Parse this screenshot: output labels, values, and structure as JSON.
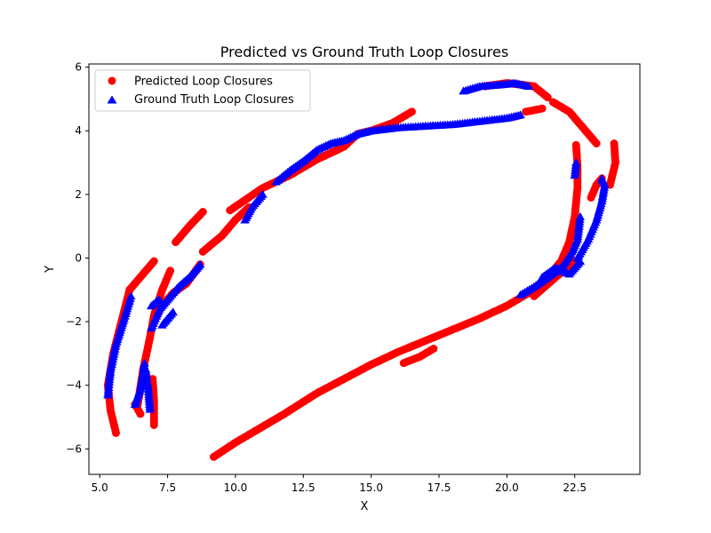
{
  "chart_data": {
    "type": "scatter",
    "title": "Predicted vs Ground Truth Loop Closures",
    "xlabel": "X",
    "ylabel": "Y",
    "xlim": [
      4.6,
      24.9
    ],
    "ylim": [
      -6.8,
      6.1
    ],
    "xticks": [
      5.0,
      7.5,
      10.0,
      12.5,
      15.0,
      17.5,
      20.0,
      22.5
    ],
    "xtick_labels": [
      "5.0",
      "7.5",
      "10.0",
      "12.5",
      "15.0",
      "17.5",
      "20.0",
      "22.5"
    ],
    "yticks": [
      -6,
      -4,
      -2,
      0,
      2,
      4,
      6
    ],
    "ytick_labels": [
      "−6",
      "−4",
      "−2",
      "0",
      "2",
      "4",
      "6"
    ],
    "grid": false,
    "legend_position": "upper-left",
    "legend": [
      {
        "label": "Predicted Loop Closures",
        "marker": "circle",
        "color": "#ff0000"
      },
      {
        "label": "Ground Truth Loop Closures",
        "marker": "triangle",
        "color": "#0000ff"
      }
    ],
    "series": [
      {
        "name": "Predicted Loop Closures",
        "marker": "circle",
        "color": "#ff0000",
        "segments": [
          [
            [
              9.2,
              -6.25
            ],
            [
              10.0,
              -5.8
            ],
            [
              11.0,
              -5.3
            ],
            [
              11.8,
              -4.9
            ],
            [
              13.0,
              -4.25
            ],
            [
              14.0,
              -3.8
            ],
            [
              15.0,
              -3.35
            ],
            [
              16.0,
              -2.95
            ],
            [
              17.0,
              -2.6
            ],
            [
              18.0,
              -2.25
            ],
            [
              19.0,
              -1.9
            ],
            [
              20.0,
              -1.5
            ],
            [
              21.0,
              -1.0
            ],
            [
              21.5,
              -0.6
            ],
            [
              22.0,
              -0.1
            ],
            [
              22.3,
              0.5
            ],
            [
              22.5,
              1.3
            ],
            [
              22.6,
              2.2
            ],
            [
              22.6,
              2.9
            ],
            [
              22.55,
              3.55
            ]
          ],
          [
            [
              16.2,
              -3.3
            ],
            [
              16.8,
              -3.1
            ],
            [
              17.3,
              -2.85
            ]
          ],
          [
            [
              21.0,
              -1.2
            ],
            [
              21.8,
              -0.6
            ],
            [
              22.5,
              -0.1
            ]
          ],
          [
            [
              23.1,
              1.9
            ],
            [
              23.3,
              2.3
            ],
            [
              23.5,
              2.5
            ]
          ],
          [
            [
              23.8,
              2.3
            ],
            [
              24.0,
              3.0
            ],
            [
              23.95,
              3.6
            ]
          ],
          [
            [
              20.7,
              4.6
            ],
            [
              21.3,
              4.7
            ]
          ],
          [
            [
              21.5,
              5.05
            ],
            [
              21.0,
              5.4
            ],
            [
              20.0,
              5.5
            ],
            [
              19.2,
              5.4
            ]
          ],
          [
            [
              21.7,
              4.9
            ],
            [
              22.3,
              4.6
            ],
            [
              22.8,
              4.1
            ],
            [
              23.3,
              3.6
            ]
          ],
          [
            [
              9.8,
              1.5
            ],
            [
              11.0,
              2.2
            ],
            [
              12.0,
              2.6
            ],
            [
              13.0,
              3.1
            ],
            [
              14.0,
              3.5
            ],
            [
              14.5,
              3.9
            ],
            [
              15.0,
              4.0
            ],
            [
              15.8,
              4.25
            ],
            [
              16.5,
              4.6
            ]
          ],
          [
            [
              8.8,
              0.2
            ],
            [
              9.5,
              0.7
            ],
            [
              10.0,
              1.2
            ],
            [
              10.5,
              1.6
            ]
          ],
          [
            [
              7.8,
              0.5
            ],
            [
              8.3,
              1.0
            ],
            [
              8.8,
              1.45
            ]
          ],
          [
            [
              6.1,
              -1.0
            ],
            [
              6.3,
              -0.8
            ],
            [
              6.6,
              -0.5
            ],
            [
              7.0,
              -0.1
            ]
          ],
          [
            [
              5.6,
              -5.5
            ],
            [
              5.4,
              -4.8
            ],
            [
              5.3,
              -4.0
            ],
            [
              5.5,
              -3.0
            ],
            [
              5.8,
              -2.0
            ],
            [
              6.1,
              -1.0
            ]
          ],
          [
            [
              6.4,
              -4.6
            ],
            [
              6.6,
              -3.5
            ],
            [
              6.85,
              -2.5
            ],
            [
              7.0,
              -1.8
            ],
            [
              7.3,
              -1.0
            ],
            [
              7.6,
              -0.4
            ]
          ],
          [
            [
              6.5,
              -4.9
            ],
            [
              6.3,
              -4.6
            ]
          ],
          [
            [
              6.95,
              -3.8
            ],
            [
              7.0,
              -4.5
            ],
            [
              7.0,
              -5.25
            ]
          ],
          [
            [
              7.0,
              -2.0
            ],
            [
              7.3,
              -1.5
            ],
            [
              7.7,
              -1.1
            ],
            [
              8.2,
              -0.8
            ],
            [
              8.7,
              -0.2
            ]
          ]
        ]
      },
      {
        "name": "Ground Truth Loop Closures",
        "marker": "triangle",
        "color": "#0000ff",
        "segments": [
          [
            [
              5.3,
              -4.3
            ],
            [
              5.4,
              -3.5
            ],
            [
              5.6,
              -2.7
            ],
            [
              5.9,
              -1.9
            ],
            [
              6.15,
              -1.2
            ]
          ],
          [
            [
              6.3,
              -4.6
            ],
            [
              6.5,
              -4.1
            ],
            [
              6.6,
              -3.6
            ],
            [
              6.65,
              -3.3
            ]
          ],
          [
            [
              6.7,
              -3.5
            ],
            [
              6.8,
              -4.2
            ],
            [
              6.85,
              -4.75
            ]
          ],
          [
            [
              6.9,
              -2.2
            ],
            [
              7.2,
              -1.6
            ],
            [
              7.6,
              -1.2
            ],
            [
              7.9,
              -0.9
            ],
            [
              8.3,
              -0.6
            ],
            [
              8.7,
              -0.2
            ]
          ],
          [
            [
              6.9,
              -1.5
            ],
            [
              7.2,
              -1.3
            ]
          ],
          [
            [
              7.3,
              -2.1
            ],
            [
              7.7,
              -1.7
            ]
          ],
          [
            [
              10.35,
              1.2
            ],
            [
              10.6,
              1.6
            ],
            [
              11.0,
              2.0
            ]
          ],
          [
            [
              11.5,
              2.4
            ],
            [
              12.0,
              2.75
            ],
            [
              12.5,
              3.05
            ],
            [
              13.0,
              3.4
            ],
            [
              13.5,
              3.6
            ],
            [
              14.0,
              3.7
            ],
            [
              14.5,
              3.9
            ],
            [
              15.0,
              4.0
            ],
            [
              16.0,
              4.1
            ],
            [
              17.0,
              4.15
            ],
            [
              18.0,
              4.2
            ],
            [
              19.0,
              4.3
            ],
            [
              20.0,
              4.4
            ],
            [
              20.5,
              4.5
            ]
          ],
          [
            [
              18.4,
              5.25
            ],
            [
              19.0,
              5.4
            ],
            [
              19.8,
              5.45
            ],
            [
              20.3,
              5.5
            ],
            [
              20.8,
              5.4
            ]
          ],
          [
            [
              20.5,
              -1.15
            ],
            [
              21.0,
              -0.9
            ],
            [
              21.5,
              -0.6
            ],
            [
              22.0,
              -0.3
            ],
            [
              22.4,
              0.2
            ],
            [
              22.6,
              0.6
            ],
            [
              22.7,
              1.3
            ]
          ],
          [
            [
              21.3,
              -0.6
            ],
            [
              21.8,
              -0.3
            ],
            [
              22.3,
              -0.5
            ],
            [
              22.7,
              -0.1
            ]
          ],
          [
            [
              22.6,
              0.0
            ],
            [
              23.0,
              0.6
            ],
            [
              23.3,
              1.2
            ],
            [
              23.5,
              1.8
            ],
            [
              23.6,
              2.3
            ],
            [
              23.5,
              2.5
            ]
          ],
          [
            [
              22.5,
              2.6
            ],
            [
              22.55,
              3.0
            ]
          ]
        ]
      }
    ]
  }
}
